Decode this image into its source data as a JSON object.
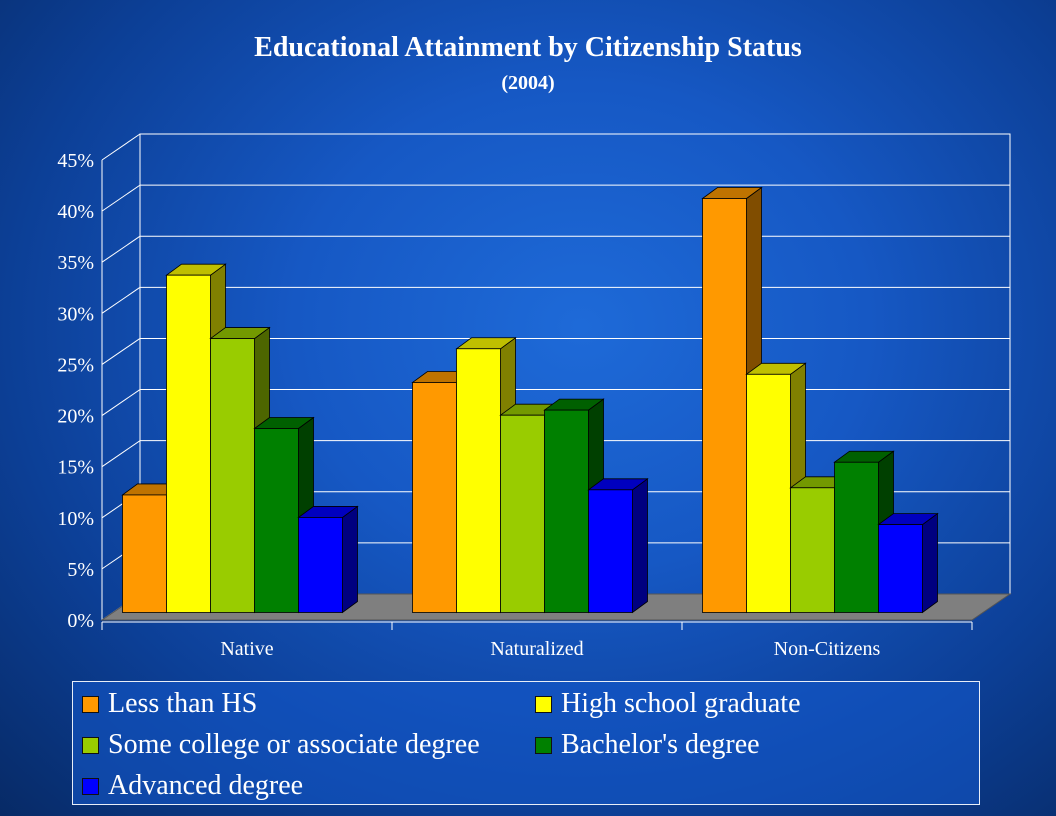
{
  "chart_data": {
    "type": "bar",
    "title": "Educational Attainment by Citizenship Status",
    "subtitle": "(2004)",
    "categories": [
      "Native",
      "Naturalized",
      "Non-Citizens"
    ],
    "series": [
      {
        "name": "Less than HS",
        "values": [
          11.5,
          22.5,
          40.5
        ],
        "color": "#ff9900"
      },
      {
        "name": "High school graduate",
        "values": [
          33.0,
          25.8,
          23.3
        ],
        "color": "#ffff00"
      },
      {
        "name": "Some college or associate degree",
        "values": [
          26.8,
          19.3,
          12.2
        ],
        "color": "#99cc00"
      },
      {
        "name": "Bachelor's degree",
        "values": [
          18.0,
          19.8,
          14.7
        ],
        "color": "#008000"
      },
      {
        "name": "Advanced degree",
        "values": [
          9.3,
          12.0,
          8.6
        ],
        "color": "#0000ff"
      }
    ],
    "ylim": [
      0,
      45
    ],
    "yticks": [
      "0%",
      "5%",
      "10%",
      "15%",
      "20%",
      "25%",
      "30%",
      "35%",
      "40%",
      "45%"
    ],
    "grid": true,
    "legend_position": "bottom",
    "style": "3d-clustered-bar"
  }
}
